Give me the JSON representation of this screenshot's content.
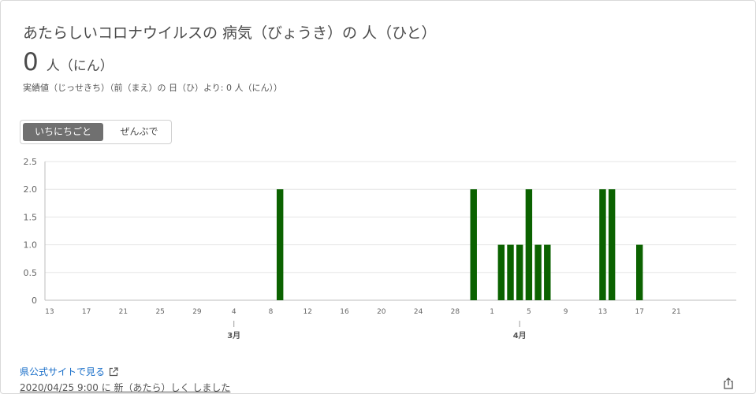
{
  "header": {
    "title": "あたらしいコロナウイルスの 病気（びょうき）の 人（ひと）",
    "value": "0",
    "unit": "人（にん）",
    "delta": "実績値（じっせきち）（前（まえ）の 日（ひ）より: 0 人（にん））"
  },
  "toggle": {
    "daily_label": "いちにちごと",
    "cumulative_label": "ぜんぶで"
  },
  "footer": {
    "link_label": "県公式サイトで見る",
    "updated": "2020/04/25 9:00 に 新（あたら）しく しました"
  },
  "icons": {
    "external_link": "external-link-icon",
    "share": "share-icon"
  },
  "colors": {
    "bar": "#0b6200",
    "grid": "#e6e6e6",
    "axis_text": "#666666"
  },
  "chart_data": {
    "type": "bar",
    "title": "",
    "xlabel": "",
    "ylabel": "",
    "ylim": [
      0,
      2.5
    ],
    "y_ticks": [
      "0",
      "0.5",
      "1.0",
      "1.5",
      "2.0",
      "2.5"
    ],
    "grid": true,
    "month_labels": [
      {
        "label": "3月",
        "date": "3/1"
      },
      {
        "label": "4月",
        "date": "4/1"
      }
    ],
    "tick_labels": [
      "13",
      "17",
      "21",
      "25",
      "29",
      "4",
      "8",
      "12",
      "16",
      "20",
      "24",
      "28",
      "1",
      "5",
      "9",
      "13",
      "17",
      "21"
    ],
    "categories": [
      "2/10",
      "2/11",
      "2/12",
      "2/13",
      "2/14",
      "2/15",
      "2/16",
      "2/17",
      "2/18",
      "2/19",
      "2/20",
      "2/21",
      "2/22",
      "2/23",
      "2/24",
      "2/25",
      "2/26",
      "2/27",
      "2/28",
      "2/29",
      "3/1",
      "3/2",
      "3/3",
      "3/4",
      "3/5",
      "3/6",
      "3/7",
      "3/8",
      "3/9",
      "3/10",
      "3/11",
      "3/12",
      "3/13",
      "3/14",
      "3/15",
      "3/16",
      "3/17",
      "3/18",
      "3/19",
      "3/20",
      "3/21",
      "3/22",
      "3/23",
      "3/24",
      "3/25",
      "3/26",
      "3/27",
      "3/28",
      "3/29",
      "3/30",
      "3/31",
      "4/1",
      "4/2",
      "4/3",
      "4/4",
      "4/5",
      "4/6",
      "4/7",
      "4/8",
      "4/9",
      "4/10",
      "4/11",
      "4/12",
      "4/13",
      "4/14",
      "4/15",
      "4/16",
      "4/17",
      "4/18",
      "4/19",
      "4/20",
      "4/21",
      "4/22",
      "4/23",
      "4/24"
    ],
    "values": [
      0,
      0,
      0,
      0,
      0,
      0,
      0,
      0,
      0,
      0,
      0,
      0,
      0,
      0,
      0,
      0,
      0,
      0,
      0,
      0,
      0,
      0,
      0,
      0,
      0,
      2,
      0,
      0,
      0,
      0,
      0,
      0,
      0,
      0,
      0,
      0,
      0,
      0,
      0,
      0,
      0,
      0,
      0,
      0,
      0,
      0,
      2,
      0,
      0,
      1,
      1,
      1,
      2,
      1,
      1,
      0,
      0,
      0,
      0,
      0,
      2,
      2,
      0,
      0,
      1,
      0,
      0,
      0,
      0,
      0,
      0,
      0,
      0,
      0,
      0
    ]
  }
}
